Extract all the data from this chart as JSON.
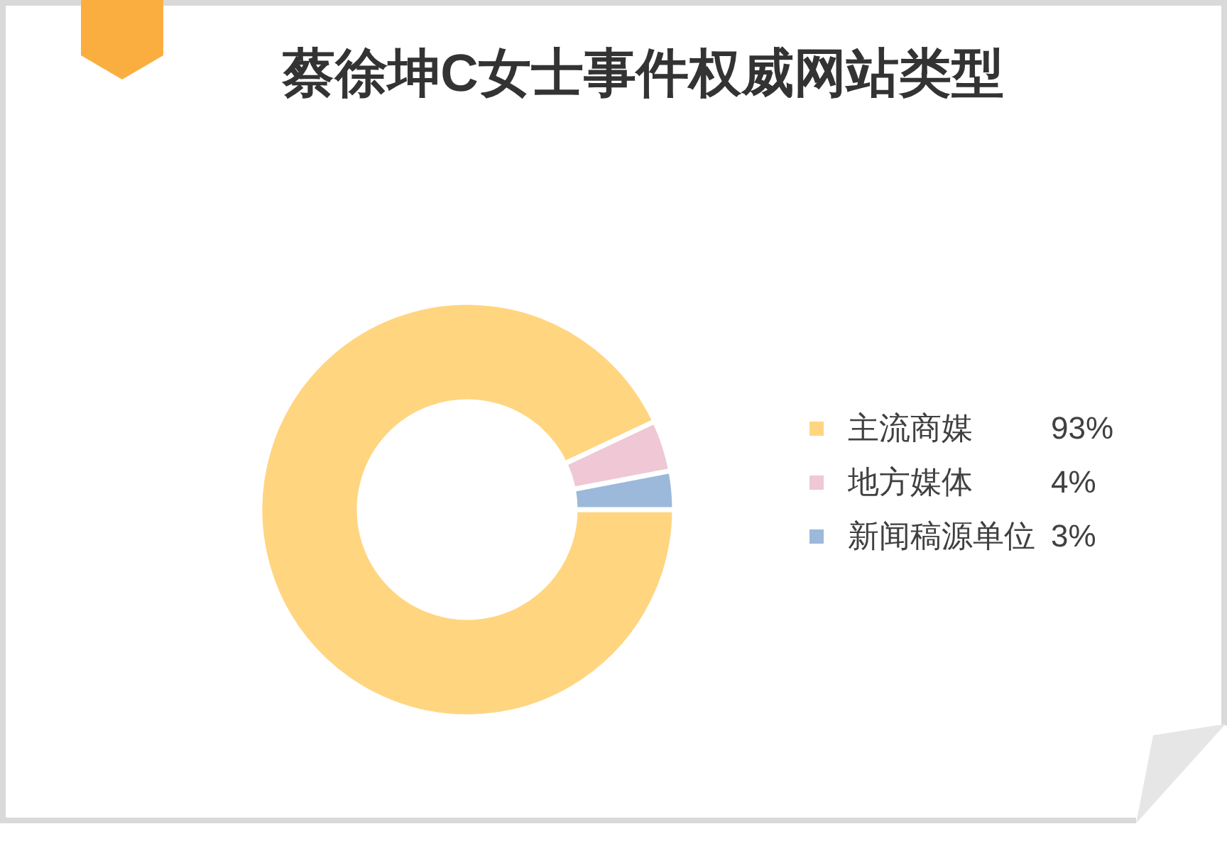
{
  "chart_data": {
    "type": "donut",
    "title": "蔡徐坤C女士事件权威网站类型",
    "categories": [
      "主流商媒",
      "地方媒体",
      "新闻稿源单位"
    ],
    "values": [
      93,
      4,
      3
    ],
    "value_labels": [
      "93%",
      "4%",
      "3%"
    ],
    "colors": [
      "#ffd580",
      "#efc7d5",
      "#9cb9db"
    ],
    "legend": "right"
  }
}
